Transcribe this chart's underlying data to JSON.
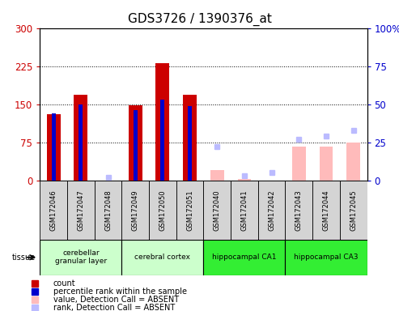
{
  "title": "GDS3726 / 1390376_at",
  "samples": [
    "GSM172046",
    "GSM172047",
    "GSM172048",
    "GSM172049",
    "GSM172050",
    "GSM172051",
    "GSM172040",
    "GSM172041",
    "GSM172042",
    "GSM172043",
    "GSM172044",
    "GSM172045"
  ],
  "count_values": [
    130,
    168,
    0,
    148,
    230,
    168,
    0,
    0,
    0,
    0,
    0,
    0
  ],
  "rank_values": [
    44,
    50,
    0,
    46,
    53,
    49,
    0,
    0,
    0,
    0,
    0,
    0
  ],
  "absent_count": [
    0,
    0,
    0,
    0,
    0,
    0,
    20,
    3,
    0,
    67,
    67,
    75
  ],
  "absent_rank": [
    0,
    0,
    2,
    0,
    0,
    0,
    22,
    3,
    5,
    27,
    29,
    33
  ],
  "tissues": [
    {
      "label": "cerebellar\ngranular layer",
      "start": 0,
      "end": 3,
      "color": "#ccffcc"
    },
    {
      "label": "cerebral cortex",
      "start": 3,
      "end": 6,
      "color": "#ccffcc"
    },
    {
      "label": "hippocampal CA1",
      "start": 6,
      "end": 9,
      "color": "#33ee33"
    },
    {
      "label": "hippocampal CA3",
      "start": 9,
      "end": 12,
      "color": "#33ee33"
    }
  ],
  "bar_color_count": "#cc0000",
  "bar_color_rank": "#0000cc",
  "bar_color_absent_count": "#ffbbbb",
  "bar_color_absent_rank": "#bbbbff",
  "ylim_left": [
    0,
    300
  ],
  "ylim_right": [
    0,
    100
  ],
  "yticks_left": [
    0,
    75,
    150,
    225,
    300
  ],
  "yticks_right": [
    0,
    25,
    50,
    75,
    100
  ],
  "ylabel_left_color": "#cc0000",
  "ylabel_right_color": "#0000cc",
  "title_fontsize": 11,
  "sample_box_color": "#d4d4d4",
  "legend_items": [
    {
      "color": "#cc0000",
      "label": "count"
    },
    {
      "color": "#0000cc",
      "label": "percentile rank within the sample"
    },
    {
      "color": "#ffbbbb",
      "label": "value, Detection Call = ABSENT"
    },
    {
      "color": "#bbbbff",
      "label": "rank, Detection Call = ABSENT"
    }
  ]
}
